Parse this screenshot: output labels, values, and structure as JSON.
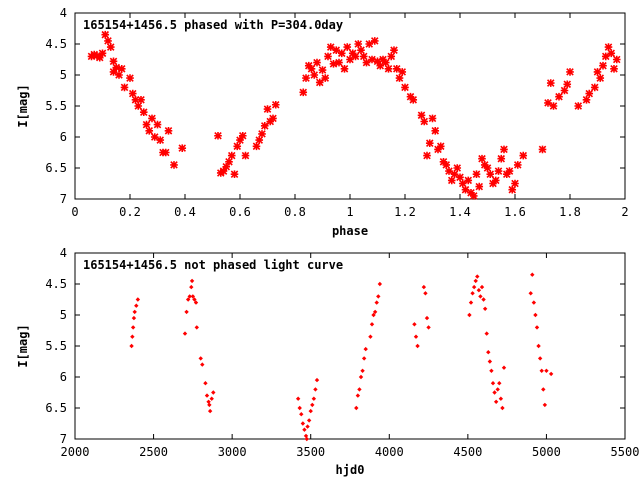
{
  "chart_data": [
    {
      "type": "scatter",
      "title": "165154+1456.5 phased with P=304.0day",
      "xlabel": "phase",
      "ylabel": "I[mag]",
      "xlim": [
        0,
        2
      ],
      "ylim": [
        7,
        4
      ],
      "y_inverted": true,
      "xticks": [
        "0",
        "0.2",
        "0.4",
        "0.6",
        "0.8",
        "1",
        "1.2",
        "1.4",
        "1.6",
        "1.8",
        "2"
      ],
      "yticks": [
        "4",
        "4.5",
        "5",
        "5.5",
        "6",
        "6.5",
        "7"
      ],
      "grid": false,
      "color": "#ff0000",
      "points": [
        [
          0.06,
          4.7
        ],
        [
          0.07,
          4.67
        ],
        [
          0.08,
          4.69
        ],
        [
          0.09,
          4.72
        ],
        [
          0.1,
          4.65
        ],
        [
          0.11,
          4.35
        ],
        [
          0.12,
          4.45
        ],
        [
          0.13,
          4.55
        ],
        [
          0.14,
          4.78
        ],
        [
          0.14,
          4.95
        ],
        [
          0.15,
          4.88
        ],
        [
          0.16,
          5.0
        ],
        [
          0.17,
          4.9
        ],
        [
          0.18,
          5.2
        ],
        [
          0.2,
          5.05
        ],
        [
          0.21,
          5.3
        ],
        [
          0.22,
          5.4
        ],
        [
          0.23,
          5.5
        ],
        [
          0.24,
          5.4
        ],
        [
          0.25,
          5.6
        ],
        [
          0.26,
          5.8
        ],
        [
          0.27,
          5.9
        ],
        [
          0.28,
          5.7
        ],
        [
          0.29,
          6.0
        ],
        [
          0.3,
          5.8
        ],
        [
          0.31,
          6.05
        ],
        [
          0.32,
          6.25
        ],
        [
          0.33,
          6.25
        ],
        [
          0.34,
          5.9
        ],
        [
          0.36,
          6.45
        ],
        [
          0.39,
          6.18
        ],
        [
          0.52,
          5.98
        ],
        [
          0.53,
          6.58
        ],
        [
          0.54,
          6.55
        ],
        [
          0.55,
          6.48
        ],
        [
          0.56,
          6.4
        ],
        [
          0.57,
          6.3
        ],
        [
          0.58,
          6.6
        ],
        [
          0.59,
          6.15
        ],
        [
          0.6,
          6.05
        ],
        [
          0.61,
          5.98
        ],
        [
          0.62,
          6.3
        ],
        [
          0.66,
          6.15
        ],
        [
          0.67,
          6.05
        ],
        [
          0.68,
          5.95
        ],
        [
          0.69,
          5.82
        ],
        [
          0.7,
          5.55
        ],
        [
          0.71,
          5.75
        ],
        [
          0.72,
          5.7
        ],
        [
          0.73,
          5.48
        ],
        [
          0.83,
          5.28
        ],
        [
          0.84,
          5.05
        ],
        [
          0.85,
          4.85
        ],
        [
          0.86,
          4.9
        ],
        [
          0.87,
          5.0
        ],
        [
          0.88,
          4.8
        ],
        [
          0.89,
          5.12
        ],
        [
          0.9,
          4.92
        ],
        [
          0.91,
          5.05
        ],
        [
          0.92,
          4.7
        ],
        [
          0.93,
          4.55
        ],
        [
          0.94,
          4.82
        ],
        [
          0.95,
          4.6
        ],
        [
          0.96,
          4.8
        ],
        [
          0.97,
          4.65
        ],
        [
          0.98,
          4.9
        ],
        [
          0.99,
          4.55
        ],
        [
          1.0,
          4.75
        ],
        [
          1.01,
          4.65
        ],
        [
          1.02,
          4.7
        ],
        [
          1.03,
          4.5
        ],
        [
          1.04,
          4.6
        ],
        [
          1.05,
          4.7
        ],
        [
          1.06,
          4.8
        ],
        [
          1.07,
          4.5
        ],
        [
          1.08,
          4.75
        ],
        [
          1.09,
          4.45
        ],
        [
          1.1,
          4.78
        ],
        [
          1.11,
          4.85
        ],
        [
          1.12,
          4.75
        ],
        [
          1.13,
          4.8
        ],
        [
          1.14,
          4.9
        ],
        [
          1.15,
          4.7
        ],
        [
          1.16,
          4.6
        ],
        [
          1.17,
          4.9
        ],
        [
          1.18,
          5.05
        ],
        [
          1.19,
          4.95
        ],
        [
          1.2,
          5.2
        ],
        [
          1.22,
          5.35
        ],
        [
          1.23,
          5.4
        ],
        [
          1.26,
          5.65
        ],
        [
          1.27,
          5.75
        ],
        [
          1.28,
          6.3
        ],
        [
          1.29,
          6.1
        ],
        [
          1.3,
          5.7
        ],
        [
          1.31,
          5.9
        ],
        [
          1.32,
          6.2
        ],
        [
          1.33,
          6.15
        ],
        [
          1.34,
          6.4
        ],
        [
          1.35,
          6.45
        ],
        [
          1.36,
          6.55
        ],
        [
          1.37,
          6.7
        ],
        [
          1.38,
          6.6
        ],
        [
          1.39,
          6.5
        ],
        [
          1.4,
          6.65
        ],
        [
          1.41,
          6.75
        ],
        [
          1.42,
          6.85
        ],
        [
          1.43,
          6.7
        ],
        [
          1.44,
          6.9
        ],
        [
          1.45,
          6.95
        ],
        [
          1.46,
          6.6
        ],
        [
          1.47,
          6.8
        ],
        [
          1.48,
          6.35
        ],
        [
          1.49,
          6.45
        ],
        [
          1.5,
          6.5
        ],
        [
          1.51,
          6.6
        ],
        [
          1.52,
          6.75
        ],
        [
          1.53,
          6.7
        ],
        [
          1.54,
          6.55
        ],
        [
          1.55,
          6.35
        ],
        [
          1.56,
          6.2
        ],
        [
          1.57,
          6.6
        ],
        [
          1.58,
          6.55
        ],
        [
          1.59,
          6.85
        ],
        [
          1.6,
          6.75
        ],
        [
          1.61,
          6.45
        ],
        [
          1.63,
          6.3
        ],
        [
          1.7,
          6.2
        ],
        [
          1.72,
          5.45
        ],
        [
          1.73,
          5.13
        ],
        [
          1.74,
          5.5
        ],
        [
          1.76,
          5.35
        ],
        [
          1.78,
          5.25
        ],
        [
          1.79,
          5.15
        ],
        [
          1.8,
          4.95
        ],
        [
          1.83,
          5.5
        ],
        [
          1.86,
          5.4
        ],
        [
          1.87,
          5.3
        ],
        [
          1.89,
          5.2
        ],
        [
          1.9,
          4.95
        ],
        [
          1.91,
          5.05
        ],
        [
          1.92,
          4.85
        ],
        [
          1.93,
          4.7
        ],
        [
          1.94,
          4.55
        ],
        [
          1.95,
          4.65
        ],
        [
          1.96,
          4.9
        ],
        [
          1.97,
          4.75
        ]
      ]
    },
    {
      "type": "scatter",
      "title": "165154+1456.5 not phased light curve",
      "xlabel": "hjd0",
      "ylabel": "I[mag]",
      "xlim": [
        2000,
        5500
      ],
      "ylim": [
        7,
        4
      ],
      "y_inverted": true,
      "xticks": [
        "2000",
        "2500",
        "3000",
        "3500",
        "4000",
        "4500",
        "5000",
        "5500"
      ],
      "yticks": [
        "4",
        "4.5",
        "5",
        "5.5",
        "6",
        "6.5",
        "7"
      ],
      "grid": false,
      "color": "#ff0000",
      "points": [
        [
          2360,
          5.5
        ],
        [
          2365,
          5.35
        ],
        [
          2370,
          5.2
        ],
        [
          2375,
          5.05
        ],
        [
          2380,
          4.95
        ],
        [
          2390,
          4.85
        ],
        [
          2400,
          4.75
        ],
        [
          2700,
          5.3
        ],
        [
          2710,
          4.95
        ],
        [
          2720,
          4.75
        ],
        [
          2730,
          4.7
        ],
        [
          2740,
          4.55
        ],
        [
          2745,
          4.45
        ],
        [
          2750,
          4.7
        ],
        [
          2760,
          4.75
        ],
        [
          2770,
          4.8
        ],
        [
          2775,
          5.2
        ],
        [
          2800,
          5.7
        ],
        [
          2810,
          5.8
        ],
        [
          2830,
          6.1
        ],
        [
          2840,
          6.3
        ],
        [
          2850,
          6.4
        ],
        [
          2855,
          6.45
        ],
        [
          2860,
          6.55
        ],
        [
          2870,
          6.35
        ],
        [
          2880,
          6.25
        ],
        [
          3420,
          6.35
        ],
        [
          3430,
          6.5
        ],
        [
          3440,
          6.6
        ],
        [
          3450,
          6.75
        ],
        [
          3460,
          6.85
        ],
        [
          3470,
          6.95
        ],
        [
          3475,
          7.0
        ],
        [
          3480,
          6.8
        ],
        [
          3490,
          6.7
        ],
        [
          3500,
          6.55
        ],
        [
          3510,
          6.45
        ],
        [
          3520,
          6.35
        ],
        [
          3530,
          6.2
        ],
        [
          3540,
          6.05
        ],
        [
          3790,
          6.5
        ],
        [
          3800,
          6.3
        ],
        [
          3810,
          6.2
        ],
        [
          3820,
          6.0
        ],
        [
          3830,
          5.9
        ],
        [
          3840,
          5.7
        ],
        [
          3850,
          5.55
        ],
        [
          3880,
          5.35
        ],
        [
          3890,
          5.15
        ],
        [
          3900,
          5.0
        ],
        [
          3910,
          4.95
        ],
        [
          3920,
          4.8
        ],
        [
          3930,
          4.7
        ],
        [
          3940,
          4.5
        ],
        [
          4160,
          5.15
        ],
        [
          4170,
          5.35
        ],
        [
          4180,
          5.5
        ],
        [
          4220,
          4.55
        ],
        [
          4230,
          4.65
        ],
        [
          4240,
          5.05
        ],
        [
          4250,
          5.2
        ],
        [
          4510,
          5.0
        ],
        [
          4520,
          4.8
        ],
        [
          4530,
          4.65
        ],
        [
          4540,
          4.55
        ],
        [
          4550,
          4.45
        ],
        [
          4560,
          4.38
        ],
        [
          4570,
          4.6
        ],
        [
          4580,
          4.7
        ],
        [
          4590,
          4.55
        ],
        [
          4600,
          4.75
        ],
        [
          4610,
          4.9
        ],
        [
          4620,
          5.3
        ],
        [
          4630,
          5.6
        ],
        [
          4640,
          5.75
        ],
        [
          4650,
          5.9
        ],
        [
          4660,
          6.1
        ],
        [
          4670,
          6.25
        ],
        [
          4680,
          6.4
        ],
        [
          4690,
          6.2
        ],
        [
          4700,
          6.1
        ],
        [
          4710,
          6.35
        ],
        [
          4720,
          6.5
        ],
        [
          4730,
          5.85
        ],
        [
          4900,
          4.65
        ],
        [
          4910,
          4.35
        ],
        [
          4920,
          4.8
        ],
        [
          4930,
          5.0
        ],
        [
          4940,
          5.2
        ],
        [
          4950,
          5.5
        ],
        [
          4960,
          5.7
        ],
        [
          4970,
          5.9
        ],
        [
          4980,
          6.2
        ],
        [
          4990,
          6.45
        ],
        [
          5000,
          5.9
        ],
        [
          5030,
          5.95
        ]
      ]
    }
  ]
}
